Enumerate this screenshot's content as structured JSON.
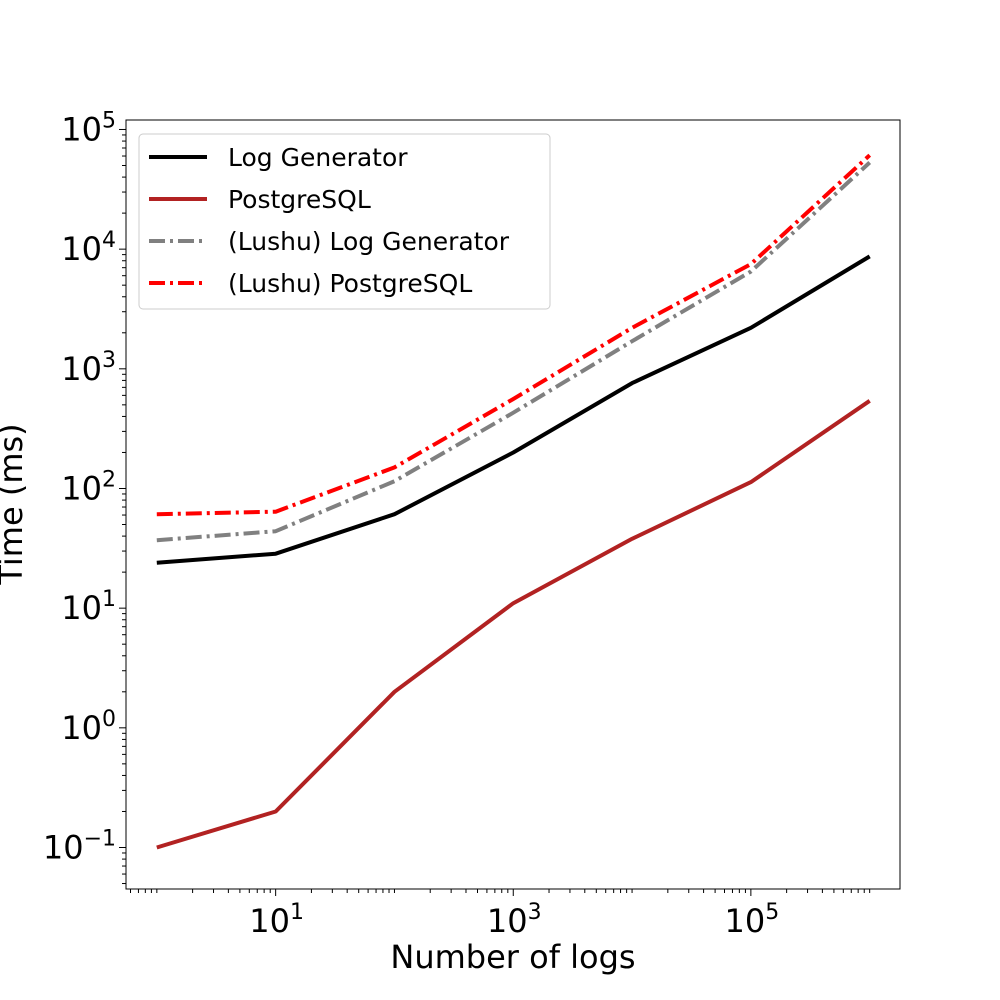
{
  "chart_data": {
    "type": "line",
    "title": "",
    "xlabel": "Number of logs",
    "ylabel": "Time (ms)",
    "xscale": "log",
    "yscale": "log",
    "xlim": [
      0.55,
      1800000
    ],
    "ylim": [
      0.045,
      120000
    ],
    "grid": false,
    "legend_position": "top-left",
    "x": [
      1,
      10,
      100,
      1000,
      10000,
      100000,
      1000000
    ],
    "x_ticks": [
      {
        "value": 10,
        "base": "10",
        "exp": "1"
      },
      {
        "value": 1000,
        "base": "10",
        "exp": "3"
      },
      {
        "value": 100000,
        "base": "10",
        "exp": "5"
      }
    ],
    "y_ticks": [
      {
        "value": 0.1,
        "base": "10",
        "exp": "−1"
      },
      {
        "value": 1,
        "base": "10",
        "exp": "0"
      },
      {
        "value": 10,
        "base": "10",
        "exp": "1"
      },
      {
        "value": 100,
        "base": "10",
        "exp": "2"
      },
      {
        "value": 1000,
        "base": "10",
        "exp": "3"
      },
      {
        "value": 10000,
        "base": "10",
        "exp": "4"
      },
      {
        "value": 100000,
        "base": "10",
        "exp": "5"
      }
    ],
    "series": [
      {
        "name": "Log Generator",
        "color": "#000000",
        "style": "solid",
        "values": [
          24,
          28.5,
          61,
          200,
          760,
          2200,
          8700
        ]
      },
      {
        "name": "PostgreSQL",
        "color": "#b22222",
        "style": "solid",
        "values": [
          0.1,
          0.2,
          2,
          11,
          38,
          113,
          540
        ]
      },
      {
        "name": "(Lushu) Log Generator",
        "color": "#808080",
        "style": "dashdot",
        "values": [
          37,
          44,
          115,
          430,
          1700,
          6500,
          53000
        ]
      },
      {
        "name": "(Lushu) PostgreSQL",
        "color": "#ff0000",
        "style": "dashdot",
        "values": [
          61,
          64,
          150,
          560,
          2200,
          7500,
          61000
        ]
      }
    ]
  }
}
